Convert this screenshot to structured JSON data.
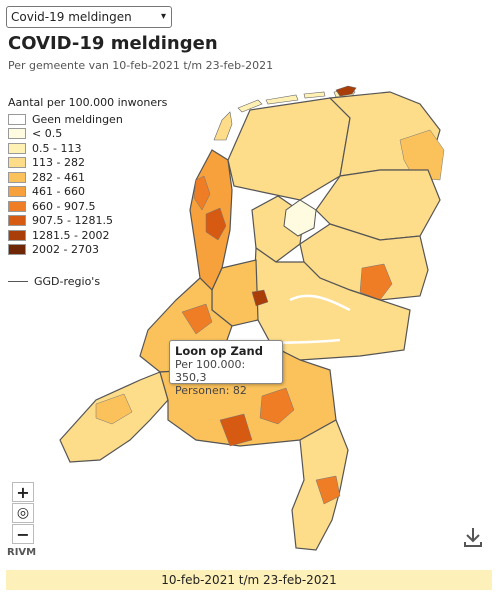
{
  "selector": {
    "value": "Covid-19 meldingen",
    "chevron": "▾"
  },
  "title": "COVID-19 meldingen",
  "subtitle": "Per gemeente van 10-feb-2021 t/m 23-feb-2021",
  "legend": {
    "title": "Aantal per 100.000 inwoners",
    "items": [
      {
        "label": "Geen meldingen",
        "color": "#ffffff"
      },
      {
        "label": "< 0.5",
        "color": "#fffbe0"
      },
      {
        "label": "0.5 - 113",
        "color": "#fff0b4"
      },
      {
        "label": "113 - 282",
        "color": "#fddc8a"
      },
      {
        "label": "282 - 461",
        "color": "#fbc25c"
      },
      {
        "label": "461 - 660",
        "color": "#f6a13b"
      },
      {
        "label": "660 - 907.5",
        "color": "#ee7d26"
      },
      {
        "label": "907.5 - 1281.5",
        "color": "#d65a12"
      },
      {
        "label": "1281.5 - 2002",
        "color": "#aa3e08"
      },
      {
        "label": "2002 - 2703",
        "color": "#6e2604"
      }
    ],
    "ggd_label": "GGD-regio's"
  },
  "tooltip": {
    "name": "Loon op Zand",
    "per100k": "Per 100.000: 350,3",
    "persons": "Personen: 82"
  },
  "controls": {
    "zoom_in": "+",
    "locate": "◎",
    "zoom_out": "−"
  },
  "attribution": "RIVM",
  "timebar": "10-feb-2021 t/m 23-feb-2021",
  "icons": {
    "download": "download-icon",
    "locate": "target-icon"
  }
}
